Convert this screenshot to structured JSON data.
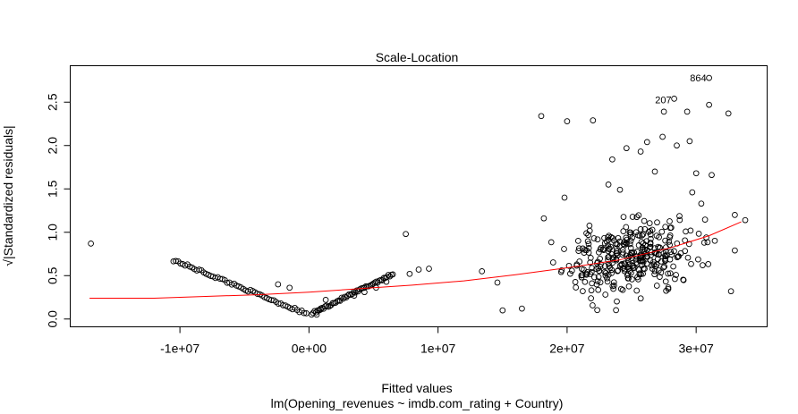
{
  "chart_data": {
    "type": "scatter",
    "title": "Scale-Location",
    "xlabel": "Fitted values",
    "ylabel": "√|Standardized residuals|",
    "subtitle": "lm(Opening_revenues ~ imdb.com_rating + Country)",
    "xlim": [
      -18500000,
      35500000
    ],
    "ylim": [
      -0.09,
      2.92
    ],
    "x_ticks": [
      -10000000,
      0,
      10000000,
      20000000,
      30000000
    ],
    "x_tick_labels": [
      "-1e+07",
      "0e+00",
      "1e+07",
      "2e+07",
      "3e+07"
    ],
    "y_ticks": [
      0.0,
      0.5,
      1.0,
      1.5,
      2.0,
      2.5
    ],
    "y_tick_labels": [
      "0.0",
      "0.5",
      "1.0",
      "1.5",
      "2.0",
      "2.5"
    ],
    "smooth_color": "#ff0000",
    "point_color": "#000000",
    "smooth_line": [
      [
        -17000000,
        0.24
      ],
      [
        -12000000,
        0.24
      ],
      [
        -8000000,
        0.26
      ],
      [
        -4000000,
        0.28
      ],
      [
        0,
        0.31
      ],
      [
        4000000,
        0.35
      ],
      [
        8000000,
        0.39
      ],
      [
        12000000,
        0.44
      ],
      [
        16000000,
        0.51
      ],
      [
        20000000,
        0.59
      ],
      [
        24000000,
        0.68
      ],
      [
        28000000,
        0.82
      ],
      [
        31000000,
        0.96
      ],
      [
        33500000,
        1.12
      ]
    ],
    "labeled_points": [
      {
        "label": "864",
        "x": 31000000,
        "y": 2.78
      },
      {
        "label": "207",
        "x": 28300000,
        "y": 2.53
      }
    ],
    "v_branch": {
      "left": {
        "x_from": -10500000,
        "x_to": -200000,
        "y_from": 0.68,
        "y_to": 0.06,
        "n": 58
      },
      "right": {
        "x_from": 200000,
        "x_to": 6500000,
        "y_from": 0.06,
        "y_to": 0.52,
        "n": 55
      },
      "outliers": [
        [
          -16900000,
          0.87
        ],
        [
          7500000,
          0.98
        ],
        [
          7800000,
          0.52
        ],
        [
          8500000,
          0.57
        ],
        [
          9300000,
          0.58
        ],
        [
          6000000,
          0.43
        ],
        [
          5200000,
          0.36
        ],
        [
          4300000,
          0.31
        ],
        [
          3500000,
          0.27
        ],
        [
          -1500000,
          0.36
        ],
        [
          -2400000,
          0.4
        ],
        [
          900000,
          0.12
        ],
        [
          1300000,
          0.22
        ],
        [
          600000,
          0.05
        ]
      ]
    },
    "cloud": {
      "n": 330,
      "x_center": 25000000,
      "x_spread": 4000000,
      "x_min": 14200000,
      "x_max": 33600000,
      "y_center": 0.72,
      "y_spread": 0.34,
      "high_points": [
        [
          18000000,
          2.34
        ],
        [
          20000000,
          2.28
        ],
        [
          22000000,
          2.29
        ],
        [
          27500000,
          2.39
        ],
        [
          29300000,
          2.39
        ],
        [
          31000000,
          2.47
        ],
        [
          32500000,
          2.37
        ],
        [
          19800000,
          1.4
        ],
        [
          23500000,
          1.84
        ],
        [
          26200000,
          2.04
        ],
        [
          27400000,
          2.1
        ],
        [
          28500000,
          2.0
        ],
        [
          29500000,
          2.05
        ],
        [
          30000000,
          1.68
        ],
        [
          31200000,
          1.66
        ],
        [
          24600000,
          1.97
        ],
        [
          25700000,
          1.93
        ],
        [
          18200000,
          1.16
        ],
        [
          14600000,
          0.42
        ],
        [
          15000000,
          0.1
        ],
        [
          16500000,
          0.12
        ],
        [
          13400000,
          0.55
        ],
        [
          33800000,
          1.14
        ],
        [
          33000000,
          1.2
        ],
        [
          32700000,
          0.32
        ],
        [
          33000000,
          0.79
        ],
        [
          30500000,
          0.62
        ],
        [
          23200000,
          1.55
        ],
        [
          24100000,
          1.49
        ],
        [
          28300000,
          2.54
        ],
        [
          31000000,
          2.78
        ],
        [
          30400000,
          1.33
        ],
        [
          26800000,
          1.7
        ],
        [
          29700000,
          1.46
        ]
      ]
    }
  }
}
